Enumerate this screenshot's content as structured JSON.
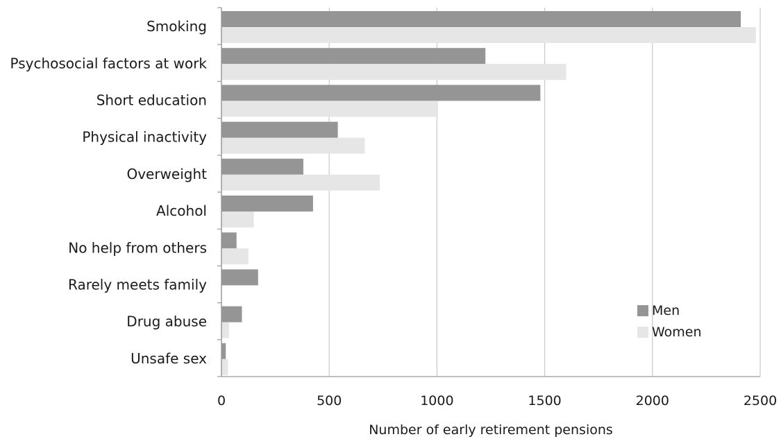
{
  "chart_data": {
    "type": "bar",
    "orientation": "horizontal",
    "categories": [
      "Smoking",
      "Psychosocial factors at work",
      "Short education",
      "Physical inactivity",
      "Overweight",
      "Alcohol",
      "No help from others",
      "Rarely meets family",
      "Drug abuse",
      "Unsafe sex"
    ],
    "series": [
      {
        "name": "Men",
        "color": "#959595",
        "values": [
          2410,
          1225,
          1480,
          540,
          380,
          425,
          70,
          170,
          95,
          20
        ]
      },
      {
        "name": "Women",
        "color": "#e6e6e6",
        "values": [
          2480,
          1600,
          1005,
          665,
          735,
          150,
          125,
          0,
          35,
          30
        ]
      }
    ],
    "title": "",
    "xlabel": "Number of early retirement pensions",
    "ylabel": "",
    "xlim": [
      0,
      2500
    ],
    "xticks": [
      0,
      500,
      1000,
      1500,
      2000,
      2500
    ],
    "grid": true,
    "legend_position": "bottom-right"
  }
}
